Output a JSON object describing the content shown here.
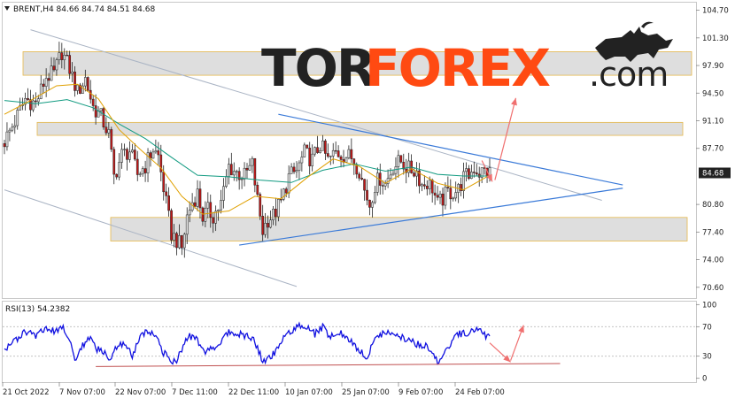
{
  "symbol_header": "BRENT,H4  84.66 84.74 84.51 84.68",
  "logo": {
    "tor": "TOR",
    "forex": "FOREX",
    "dotcom": ".com"
  },
  "colors": {
    "bull": "#e0e0e0",
    "bear": "#c01818",
    "wick": "#222222",
    "ma_fast": "#e0a000",
    "ma_slow": "#109a80",
    "rsi": "#1010e0",
    "trendline": "#3a7ad8",
    "channel": "#aab4c4",
    "zone": "#d8d8d8",
    "zone_border": "#e6b84a",
    "arrow": "#f07070",
    "rsi_support": "#c05050"
  },
  "chart_data": [
    {
      "type": "candlestick",
      "title": "BRENT,H4",
      "ohlc_readout": {
        "open": 84.66,
        "high": 84.74,
        "low": 84.51,
        "close": 84.68
      },
      "current_price": "84.68",
      "x_ticks": [
        "21 Oct 2022",
        "7 Nov 07:00",
        "22 Nov 07:00",
        "7 Dec 11:00",
        "22 Dec 11:00",
        "10 Jan 07:00",
        "25 Jan 07:00",
        "9 Feb 07:00",
        "24 Feb 07:00"
      ],
      "y_ticks": [
        "104.70",
        "101.30",
        "97.90",
        "94.50",
        "91.10",
        "87.70",
        "80.80",
        "77.40",
        "74.00",
        "70.60"
      ],
      "ylim": [
        69.6,
        105.2
      ],
      "xlim": [
        0,
        186
      ],
      "close_path": [
        [
          0,
          88.6
        ],
        [
          4,
          91.0
        ],
        [
          8,
          93.8
        ],
        [
          12,
          93.2
        ],
        [
          16,
          96.5
        ],
        [
          19,
          96.9
        ],
        [
          22,
          99.6
        ],
        [
          25,
          97.5
        ],
        [
          28,
          94.6
        ],
        [
          31,
          96.3
        ],
        [
          34,
          92.8
        ],
        [
          37,
          91.6
        ],
        [
          40,
          89.4
        ],
        [
          42,
          84.2
        ],
        [
          45,
          86.9
        ],
        [
          48,
          87.4
        ],
        [
          51,
          84.5
        ],
        [
          54,
          85.6
        ],
        [
          57,
          87.6
        ],
        [
          59,
          86.7
        ],
        [
          62,
          80.9
        ],
        [
          64,
          77.2
        ],
        [
          66,
          76.4
        ],
        [
          68,
          75.4
        ],
        [
          70,
          79.3
        ],
        [
          72,
          81.1
        ],
        [
          74,
          82.2
        ],
        [
          76,
          79.3
        ],
        [
          78,
          80.0
        ],
        [
          80,
          79.4
        ],
        [
          83,
          80.9
        ],
        [
          86,
          85.5
        ],
        [
          89,
          84.7
        ],
        [
          92,
          84.3
        ],
        [
          95,
          85.7
        ],
        [
          97,
          81.3
        ],
        [
          99,
          77.6
        ],
        [
          101,
          79.0
        ],
        [
          103,
          79.4
        ],
        [
          106,
          81.1
        ],
        [
          109,
          84.2
        ],
        [
          112,
          84.9
        ],
        [
          115,
          87.1
        ],
        [
          118,
          86.3
        ],
        [
          121,
          88.2
        ],
        [
          124,
          86.2
        ],
        [
          127,
          87.2
        ],
        [
          130,
          86.9
        ],
        [
          133,
          86.6
        ],
        [
          136,
          85.1
        ],
        [
          138,
          82.5
        ],
        [
          140,
          80.8
        ],
        [
          142,
          83.2
        ],
        [
          144,
          84.1
        ],
        [
          146,
          83.3
        ],
        [
          149,
          85.5
        ],
        [
          152,
          86.1
        ],
        [
          155,
          85.1
        ],
        [
          158,
          84.9
        ],
        [
          160,
          83.2
        ],
        [
          162,
          83.5
        ],
        [
          164,
          82.9
        ],
        [
          166,
          80.8
        ],
        [
          168,
          81.5
        ],
        [
          170,
          82.3
        ],
        [
          172,
          82.3
        ],
        [
          174,
          82.6
        ],
        [
          176,
          84.1
        ],
        [
          178,
          84.4
        ],
        [
          180,
          85.3
        ],
        [
          182,
          84.7
        ],
        [
          184,
          84.9
        ],
        [
          186,
          84.7
        ]
      ],
      "ma_fast_path": [
        [
          0,
          91.9
        ],
        [
          10,
          93.6
        ],
        [
          20,
          95.4
        ],
        [
          28,
          95.6
        ],
        [
          36,
          93.8
        ],
        [
          44,
          90.0
        ],
        [
          52,
          87.6
        ],
        [
          60,
          85.3
        ],
        [
          68,
          81.8
        ],
        [
          76,
          79.6
        ],
        [
          86,
          80.0
        ],
        [
          96,
          81.8
        ],
        [
          106,
          81.5
        ],
        [
          116,
          84.1
        ],
        [
          126,
          86.4
        ],
        [
          136,
          85.5
        ],
        [
          146,
          83.4
        ],
        [
          156,
          85.2
        ],
        [
          166,
          83.4
        ],
        [
          176,
          82.6
        ],
        [
          186,
          84.4
        ]
      ],
      "ma_slow_path": [
        [
          0,
          93.6
        ],
        [
          12,
          93.2
        ],
        [
          24,
          93.7
        ],
        [
          34,
          92.7
        ],
        [
          44,
          90.7
        ],
        [
          54,
          88.9
        ],
        [
          64,
          86.6
        ],
        [
          74,
          84.4
        ],
        [
          86,
          84.2
        ],
        [
          98,
          83.8
        ],
        [
          110,
          83.5
        ],
        [
          122,
          85.0
        ],
        [
          134,
          85.8
        ],
        [
          146,
          84.9
        ],
        [
          156,
          85.4
        ],
        [
          166,
          84.5
        ],
        [
          176,
          84.3
        ],
        [
          186,
          84.3
        ]
      ],
      "resistance_zones": [
        [
          96.7,
          99.6
        ],
        [
          89.3,
          90.9
        ],
        [
          76.3,
          79.2
        ]
      ],
      "channel_lines": [
        {
          "from": [
            10,
            102.3
          ],
          "to": [
            229,
            81.3
          ]
        },
        {
          "from": [
            0,
            82.6
          ],
          "to": [
            112,
            70.7
          ]
        }
      ],
      "trendlines": [
        {
          "from": [
            105,
            91.9
          ],
          "to": [
            237,
            83.2
          ]
        },
        {
          "from": [
            90,
            75.8
          ],
          "to": [
            237,
            82.8
          ]
        }
      ],
      "forecast_arrows": [
        {
          "from": [
            183,
            86.2
          ],
          "to": [
            187,
            83.6
          ]
        },
        {
          "from": [
            188,
            83.8
          ],
          "to": [
            196,
            93.9
          ]
        }
      ]
    },
    {
      "type": "line",
      "title": "RSI(13) 54.2382",
      "y_ticks": [
        "100",
        "70",
        "30",
        "0"
      ],
      "levels": [
        70,
        30
      ],
      "ylim": [
        -4,
        104
      ],
      "xlim": [
        0,
        186
      ],
      "series": [
        {
          "name": "RSI(13)",
          "values_path": [
            [
              0,
              40
            ],
            [
              4,
              52
            ],
            [
              8,
              62
            ],
            [
              12,
              58
            ],
            [
              16,
              66
            ],
            [
              20,
              63
            ],
            [
              22,
              72
            ],
            [
              25,
              52
            ],
            [
              27,
              25
            ],
            [
              30,
              45
            ],
            [
              33,
              55
            ],
            [
              35,
              40
            ],
            [
              38,
              36
            ],
            [
              40,
              24
            ],
            [
              43,
              44
            ],
            [
              46,
              48
            ],
            [
              49,
              30
            ],
            [
              52,
              55
            ],
            [
              55,
              64
            ],
            [
              58,
              60
            ],
            [
              61,
              35
            ],
            [
              64,
              22
            ],
            [
              66,
              23
            ],
            [
              68,
              40
            ],
            [
              71,
              58
            ],
            [
              74,
              52
            ],
            [
              77,
              35
            ],
            [
              80,
              40
            ],
            [
              83,
              52
            ],
            [
              86,
              64
            ],
            [
              89,
              60
            ],
            [
              92,
              58
            ],
            [
              95,
              55
            ],
            [
              97,
              42
            ],
            [
              99,
              22
            ],
            [
              101,
              28
            ],
            [
              104,
              35
            ],
            [
              107,
              55
            ],
            [
              110,
              65
            ],
            [
              113,
              70
            ],
            [
              116,
              68
            ],
            [
              119,
              60
            ],
            [
              122,
              70
            ],
            [
              125,
              55
            ],
            [
              128,
              63
            ],
            [
              131,
              55
            ],
            [
              134,
              45
            ],
            [
              137,
              35
            ],
            [
              139,
              25
            ],
            [
              142,
              55
            ],
            [
              145,
              60
            ],
            [
              148,
              62
            ],
            [
              151,
              58
            ],
            [
              154,
              52
            ],
            [
              157,
              48
            ],
            [
              160,
              45
            ],
            [
              162,
              42
            ],
            [
              164,
              38
            ],
            [
              166,
              22
            ],
            [
              168,
              30
            ],
            [
              170,
              42
            ],
            [
              172,
              52
            ],
            [
              174,
              60
            ],
            [
              176,
              60
            ],
            [
              178,
              62
            ],
            [
              180,
              66
            ],
            [
              182,
              70
            ],
            [
              184,
              60
            ],
            [
              186,
              54
            ]
          ]
        }
      ],
      "support_line": {
        "from": [
          35,
          16
        ],
        "to": [
          213,
          20
        ]
      },
      "forecast_arrows": [
        {
          "from": [
            186,
            48
          ],
          "to": [
            194,
            22
          ]
        },
        {
          "from": [
            194,
            24
          ],
          "to": [
            199,
            72
          ]
        }
      ]
    }
  ]
}
